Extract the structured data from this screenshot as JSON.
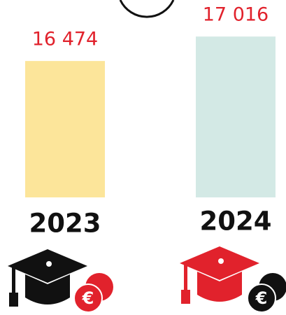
{
  "chart_data": {
    "type": "bar",
    "categories": [
      "2023",
      "2024"
    ],
    "values": [
      16474,
      17016
    ],
    "value_labels": [
      "16 474",
      "17 016"
    ],
    "colors": [
      "#fce59a",
      "#d3e9e5"
    ],
    "label_color": "#e1222c",
    "ylim": [
      13450,
      17500
    ]
  }
}
